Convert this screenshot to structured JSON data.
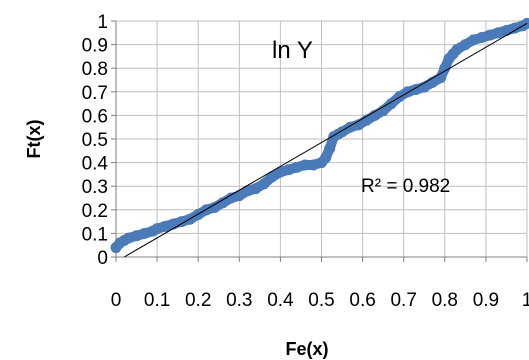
{
  "chart_data": {
    "type": "scatter",
    "title": "ln Y",
    "xlabel": "Fe(x)",
    "ylabel": "Ft(x)",
    "xlim": [
      0,
      1
    ],
    "ylim": [
      0,
      1
    ],
    "x_ticks": [
      "0",
      "0.1",
      "0.2",
      "0.3",
      "0.4",
      "0.5",
      "0.6",
      "0.7",
      "0.8",
      "0.9",
      "1"
    ],
    "y_ticks": [
      "0",
      "0.1",
      "0.2",
      "0.3",
      "0.4",
      "0.5",
      "0.6",
      "0.7",
      "0.8",
      "0.9",
      "1"
    ],
    "grid": true,
    "annotation": "R² = 0.982",
    "colors": {
      "points": "#4a7ab8",
      "trendline": "#000000",
      "grid": "#bfbfbf"
    },
    "trendline": {
      "x": [
        0.02,
        1.0
      ],
      "y": [
        0.0,
        0.99
      ]
    },
    "series": [
      {
        "x": [
          0.0,
          0.01,
          0.02,
          0.03,
          0.05,
          0.07,
          0.09,
          0.1,
          0.12,
          0.14,
          0.16,
          0.18,
          0.2,
          0.22,
          0.24,
          0.26,
          0.28,
          0.3,
          0.32,
          0.34,
          0.36,
          0.38,
          0.4,
          0.42,
          0.44,
          0.46,
          0.48,
          0.5,
          0.51,
          0.52,
          0.53,
          0.54,
          0.55,
          0.57,
          0.59,
          0.61,
          0.63,
          0.65,
          0.67,
          0.69,
          0.71,
          0.73,
          0.75,
          0.77,
          0.79,
          0.8,
          0.81,
          0.82,
          0.83,
          0.85,
          0.87,
          0.89,
          0.91,
          0.93,
          0.95,
          0.97,
          0.99,
          1.0
        ],
        "y": [
          0.04,
          0.06,
          0.07,
          0.08,
          0.09,
          0.1,
          0.11,
          0.12,
          0.13,
          0.14,
          0.15,
          0.16,
          0.18,
          0.2,
          0.21,
          0.23,
          0.25,
          0.26,
          0.28,
          0.29,
          0.31,
          0.34,
          0.36,
          0.37,
          0.38,
          0.39,
          0.39,
          0.4,
          0.42,
          0.46,
          0.51,
          0.52,
          0.53,
          0.55,
          0.56,
          0.58,
          0.6,
          0.62,
          0.65,
          0.68,
          0.7,
          0.71,
          0.72,
          0.74,
          0.76,
          0.8,
          0.84,
          0.86,
          0.88,
          0.9,
          0.92,
          0.93,
          0.94,
          0.95,
          0.96,
          0.97,
          0.98,
          0.99
        ]
      }
    ]
  }
}
